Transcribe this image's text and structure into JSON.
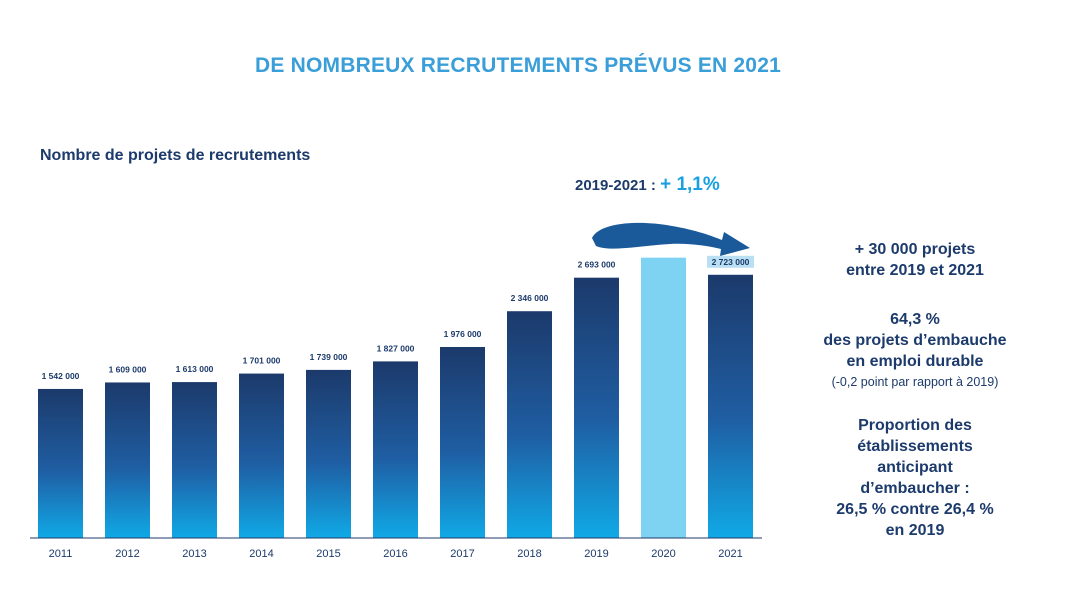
{
  "title": "DE NOMBREUX RECRUTEMENTS PRÉVUS EN 2021",
  "chart_title": "Nombre de projets de recrutements",
  "evolution": {
    "label": "2019-2021 :",
    "value": "+ 1,1%"
  },
  "side_panel": {
    "block1": [
      "+ 30 000 projets",
      "entre 2019 et 2021"
    ],
    "block2": [
      "64,3 %",
      "des projets d’embauche",
      "en emploi durable"
    ],
    "block2_note": "(-0,2 point par rapport à 2019)",
    "block3": [
      "Proportion des",
      "établissements",
      "anticipant",
      "d’embaucher :",
      "26,5 % contre 26,4 %",
      "en 2019"
    ]
  },
  "colors": {
    "bar_top": "#1c3a6b",
    "bar_bottom": "#10a9e6",
    "bar_2020": "#7fd3f2",
    "arrow": "#1a5a9a",
    "accent": "#3a9fd8"
  },
  "chart_data": {
    "type": "bar",
    "categories": [
      "2011",
      "2012",
      "2013",
      "2014",
      "2015",
      "2016",
      "2017",
      "2018",
      "2019",
      "2020",
      "2021"
    ],
    "values": [
      1542000,
      1609000,
      1613000,
      1701000,
      1739000,
      1827000,
      1976000,
      2346000,
      2693000,
      2900000,
      2723000
    ],
    "value_labels": [
      "1 542 000",
      "1 609 000",
      "1 613 000",
      "1 701 000",
      "1 739 000",
      "1 827 000",
      "1 976 000",
      "2 346 000",
      "2 693 000",
      "",
      "2 723 000"
    ],
    "highlight": "2020",
    "ylim": [
      0,
      3000000
    ],
    "grid": false,
    "legend": "none"
  }
}
